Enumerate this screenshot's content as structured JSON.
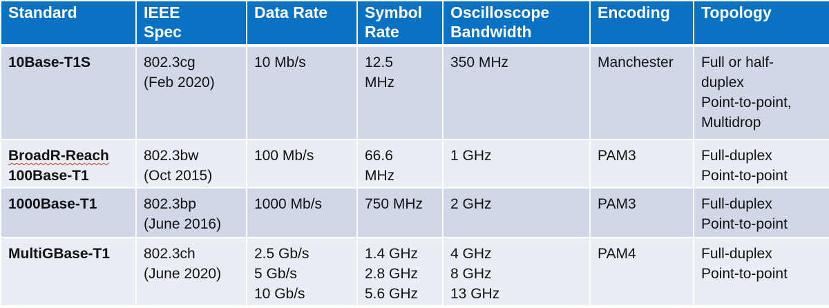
{
  "columns": [
    "Standard",
    "IEEE Spec",
    "Data Rate",
    "Symbol Rate",
    "Oscilloscope Bandwidth",
    "Encoding",
    "Topology"
  ],
  "header_lines": [
    [
      "Standard"
    ],
    [
      "IEEE",
      "Spec"
    ],
    [
      "Data Rate"
    ],
    [
      "Symbol",
      "Rate"
    ],
    [
      "Oscilloscope",
      "Bandwidth"
    ],
    [
      "Encoding"
    ],
    [
      "Topology"
    ]
  ],
  "rows": [
    {
      "standard": [
        "10Base-T1S"
      ],
      "ieee_spec": [
        "802.3cg",
        "(Feb 2020)"
      ],
      "data_rate": [
        "10 Mb/s"
      ],
      "symbol_rate": [
        "12.5",
        "MHz"
      ],
      "bandwidth": [
        "350 MHz"
      ],
      "encoding": [
        "Manchester"
      ],
      "topology": [
        "Full or half-",
        "duplex",
        "Point-to-point,",
        "Multidrop"
      ]
    },
    {
      "standard": [
        "BroadR-Reach",
        "100Base-T1"
      ],
      "ieee_spec": [
        "802.3bw",
        "(Oct 2015)"
      ],
      "data_rate": [
        "100 Mb/s"
      ],
      "symbol_rate": [
        "66.6",
        "MHz"
      ],
      "bandwidth": [
        "1 GHz"
      ],
      "encoding": [
        "PAM3"
      ],
      "topology": [
        "Full-duplex",
        "Point-to-point"
      ]
    },
    {
      "standard": [
        "1000Base-T1"
      ],
      "ieee_spec": [
        "802.3bp",
        "(June 2016)"
      ],
      "data_rate": [
        "1000 Mb/s"
      ],
      "symbol_rate": [
        "750 MHz"
      ],
      "bandwidth": [
        "2 GHz"
      ],
      "encoding": [
        "PAM3"
      ],
      "topology": [
        "Full-duplex",
        "Point-to-point"
      ]
    },
    {
      "standard": [
        "MultiGBase-T1"
      ],
      "ieee_spec": [
        "802.3ch",
        "(June 2020)"
      ],
      "data_rate": [
        "2.5 Gb/s",
        "5 Gb/s",
        "10 Gb/s"
      ],
      "symbol_rate": [
        "1.4 GHz",
        "2.8 GHz",
        "5.6 GHz"
      ],
      "bandwidth": [
        "4 GHz",
        "8 GHz",
        "13 GHz"
      ],
      "encoding": [
        "PAM4"
      ],
      "topology": [
        "Full-duplex",
        "Point-to-point"
      ]
    }
  ],
  "colors": {
    "header_bg": "#0a72c2",
    "row_dark": "#d0d8e8",
    "row_light": "#e9edf4",
    "spellcheck_underline": "#d23a2c"
  }
}
